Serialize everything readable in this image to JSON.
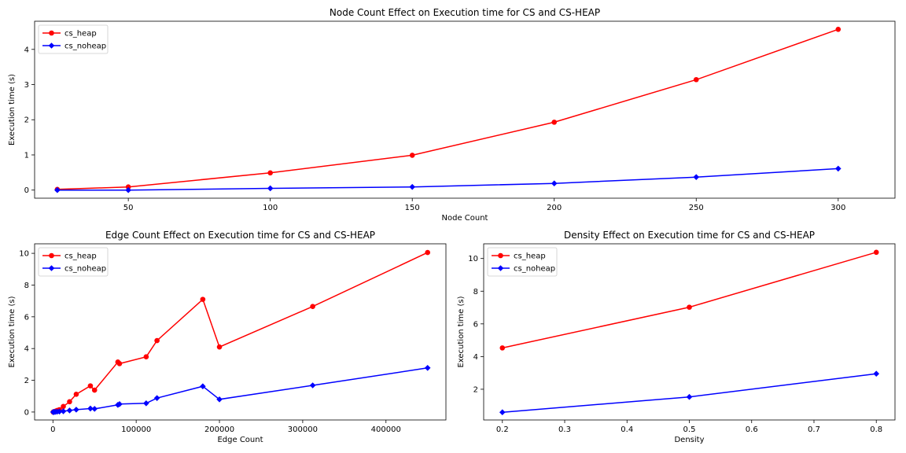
{
  "chart_data": [
    {
      "type": "line",
      "title": "Node Count Effect on Execution time for CS and CS-HEAP",
      "xlabel": "Node Count",
      "ylabel": "Execution time (s)",
      "xlim": [
        17,
        320
      ],
      "ylim": [
        -0.23,
        4.8
      ],
      "xticks": [
        50,
        100,
        150,
        200,
        250,
        300
      ],
      "xtick_labels": [
        "50",
        "100",
        "150",
        "200",
        "250",
        "300"
      ],
      "yticks": [
        0,
        1,
        2,
        3,
        4
      ],
      "ytick_labels": [
        "0",
        "1",
        "2",
        "3",
        "4"
      ],
      "legend_position": "top-left",
      "series": [
        {
          "name": "cs_heap",
          "color": "#ff0000",
          "marker": "circle",
          "x": [
            25,
            50,
            100,
            150,
            200,
            250,
            300
          ],
          "y": [
            0.02,
            0.09,
            0.49,
            0.99,
            1.93,
            3.14,
            4.57
          ]
        },
        {
          "name": "cs_noheap",
          "color": "#0000ff",
          "marker": "diamond",
          "x": [
            25,
            50,
            100,
            150,
            200,
            250,
            300
          ],
          "y": [
            0.0,
            0.0,
            0.05,
            0.09,
            0.19,
            0.37,
            0.61
          ]
        }
      ]
    },
    {
      "type": "line",
      "title": "Edge Count Effect on Execution time for CS and CS-HEAP",
      "xlabel": "Edge Count",
      "ylabel": "Execution time (s)",
      "xlim": [
        -22000,
        472000
      ],
      "ylim": [
        -0.5,
        10.6
      ],
      "xticks": [
        0,
        100000,
        200000,
        300000,
        400000
      ],
      "xtick_labels": [
        "0",
        "100000",
        "200000",
        "300000",
        "400000"
      ],
      "yticks": [
        0,
        2,
        4,
        6,
        8,
        10
      ],
      "ytick_labels": [
        "0",
        "2",
        "4",
        "6",
        "8",
        "10"
      ],
      "legend_position": "top-left",
      "series": [
        {
          "name": "cs_heap",
          "color": "#ff0000",
          "marker": "circle",
          "x": [
            300,
            1250,
            2800,
            5000,
            7800,
            12500,
            20000,
            28000,
            45000,
            50000,
            78000,
            80000,
            112000,
            125000,
            180000,
            200000,
            312000,
            450000
          ],
          "y": [
            0.0,
            0.02,
            0.05,
            0.1,
            0.15,
            0.35,
            0.65,
            1.12,
            1.65,
            1.38,
            3.15,
            3.05,
            3.48,
            4.5,
            7.1,
            4.1,
            6.65,
            10.05
          ]
        },
        {
          "name": "cs_noheap",
          "color": "#0000ff",
          "marker": "diamond",
          "x": [
            300,
            1250,
            2800,
            5000,
            7800,
            12500,
            20000,
            28000,
            45000,
            50000,
            78000,
            80000,
            112000,
            125000,
            180000,
            200000,
            312000,
            450000
          ],
          "y": [
            0.0,
            0.0,
            0.01,
            0.02,
            0.03,
            0.05,
            0.1,
            0.15,
            0.22,
            0.2,
            0.45,
            0.5,
            0.55,
            0.88,
            1.62,
            0.8,
            1.68,
            2.78
          ]
        }
      ]
    },
    {
      "type": "line",
      "title": "Density Effect on Execution time for CS and CS-HEAP",
      "xlabel": "Density",
      "ylabel": "Execution time (s)",
      "xlim": [
        0.17,
        0.83
      ],
      "ylim": [
        0.12,
        10.9
      ],
      "xticks": [
        0.2,
        0.3,
        0.4,
        0.5,
        0.6,
        0.7,
        0.8
      ],
      "xtick_labels": [
        "0.2",
        "0.3",
        "0.4",
        "0.5",
        "0.6",
        "0.7",
        "0.8"
      ],
      "yticks": [
        2,
        4,
        6,
        8,
        10
      ],
      "ytick_labels": [
        "2",
        "4",
        "6",
        "8",
        "10"
      ],
      "legend_position": "top-left",
      "series": [
        {
          "name": "cs_heap",
          "color": "#ff0000",
          "marker": "circle",
          "x": [
            0.2,
            0.5,
            0.8
          ],
          "y": [
            4.53,
            7.02,
            10.38
          ]
        },
        {
          "name": "cs_noheap",
          "color": "#0000ff",
          "marker": "diamond",
          "x": [
            0.2,
            0.5,
            0.8
          ],
          "y": [
            0.59,
            1.53,
            2.95
          ]
        }
      ]
    }
  ]
}
